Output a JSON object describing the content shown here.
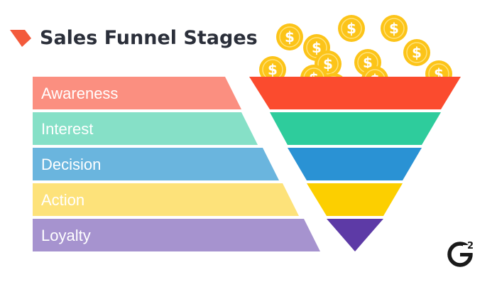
{
  "title": "Sales Funnel Stages",
  "stages": [
    {
      "label": "Awareness",
      "band_color": "#fb8f80",
      "funnel_color": "#fb4b2e"
    },
    {
      "label": "Interest",
      "band_color": "#86e0c7",
      "funnel_color": "#2ecc9c"
    },
    {
      "label": "Decision",
      "band_color": "#6ab5de",
      "funnel_color": "#2a92d4"
    },
    {
      "label": "Action",
      "band_color": "#fde27a",
      "funnel_color": "#fccf00"
    },
    {
      "label": "Loyalty",
      "band_color": "#a693cf",
      "funnel_color": "#5d3aa6"
    }
  ],
  "colors": {
    "title_text": "#2b2f3a",
    "title_mark": "#f35a3b",
    "coin": "#fcc419",
    "coin_glyph": "#ffffff",
    "logo": "#1a1a1a"
  },
  "coins": {
    "glyph": "$",
    "count": 12
  },
  "brand": {
    "logo_icon": "g2-logo-icon",
    "logo_sup": "2"
  }
}
